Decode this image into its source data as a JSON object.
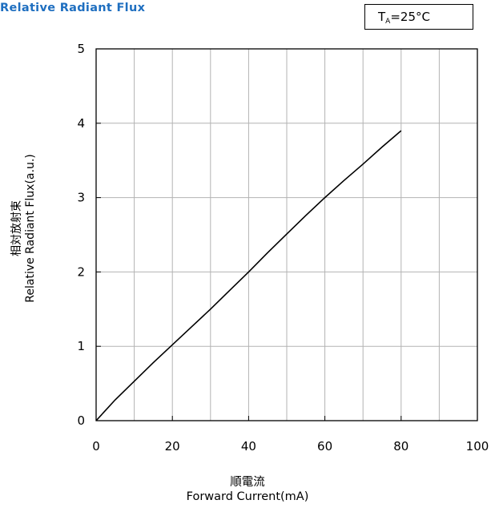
{
  "header": {
    "title": "Relative Radiant Flux",
    "condition_main": "T",
    "condition_sub": "A",
    "condition_rest": "=25°C"
  },
  "colors": {
    "title": "#1f6fc0",
    "line": "#000000",
    "grid": "#b3b3b3"
  },
  "chart_data": {
    "type": "line",
    "title": "Relative Radiant Flux",
    "xlabel_jp": "順電流",
    "xlabel": "Forward Current(mA)",
    "ylabel_jp": "相対放射束",
    "ylabel": "Relative Radiant Flux(a.u.)",
    "xlim": [
      0,
      100
    ],
    "ylim": [
      0,
      5
    ],
    "xticks": [
      0,
      20,
      40,
      60,
      80,
      100
    ],
    "yticks": [
      0,
      1,
      2,
      3,
      4,
      5
    ],
    "x_minor_step": 10,
    "grid": true,
    "series": [
      {
        "x": [
          0,
          5,
          10,
          15,
          20,
          25,
          30,
          35,
          40,
          45,
          50,
          55,
          60,
          65,
          70,
          75,
          80
        ],
        "values": [
          0,
          0.28,
          0.53,
          0.78,
          1.02,
          1.26,
          1.5,
          1.75,
          2.0,
          2.26,
          2.51,
          2.76,
          3.0,
          3.23,
          3.45,
          3.68,
          3.9
        ]
      }
    ]
  }
}
